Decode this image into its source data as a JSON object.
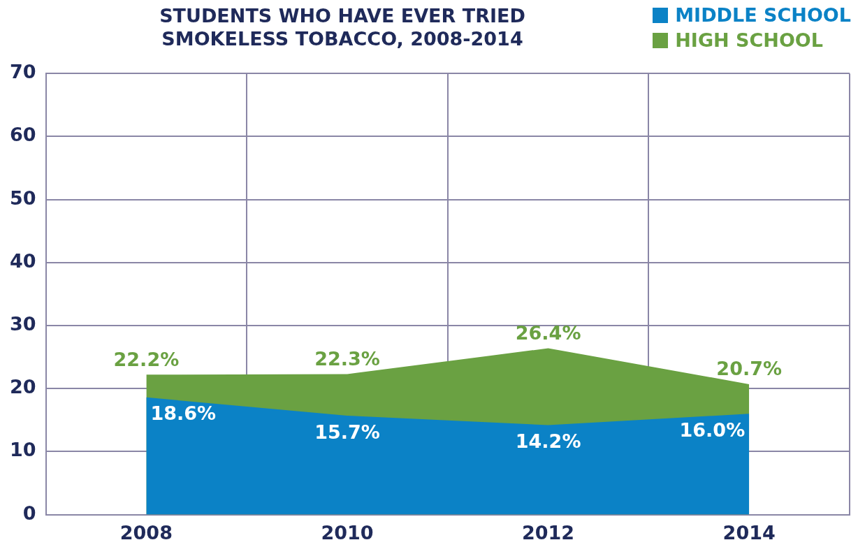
{
  "chart_data": {
    "type": "area",
    "title": "STUDENTS WHO HAVE EVER TRIED SMOKELESS TOBACCO, 2008-2014",
    "categories": [
      "2008",
      "2010",
      "2012",
      "2014"
    ],
    "series": [
      {
        "name": "MIDDLE SCHOOL",
        "color": "#0b82c6",
        "values": [
          18.6,
          15.7,
          14.2,
          16.0
        ],
        "value_labels": [
          "18.6%",
          "15.7%",
          "14.2%",
          "16.0%"
        ]
      },
      {
        "name": "HIGH SCHOOL",
        "color": "#6aa142",
        "values": [
          22.2,
          22.3,
          26.4,
          20.7
        ],
        "value_labels": [
          "22.2%",
          "22.3%",
          "26.4%",
          "20.7%"
        ]
      }
    ],
    "ylim": [
      0,
      70
    ],
    "yticks": [
      0,
      10,
      20,
      30,
      40,
      50,
      60,
      70
    ],
    "grid": true,
    "legend": "top right"
  }
}
